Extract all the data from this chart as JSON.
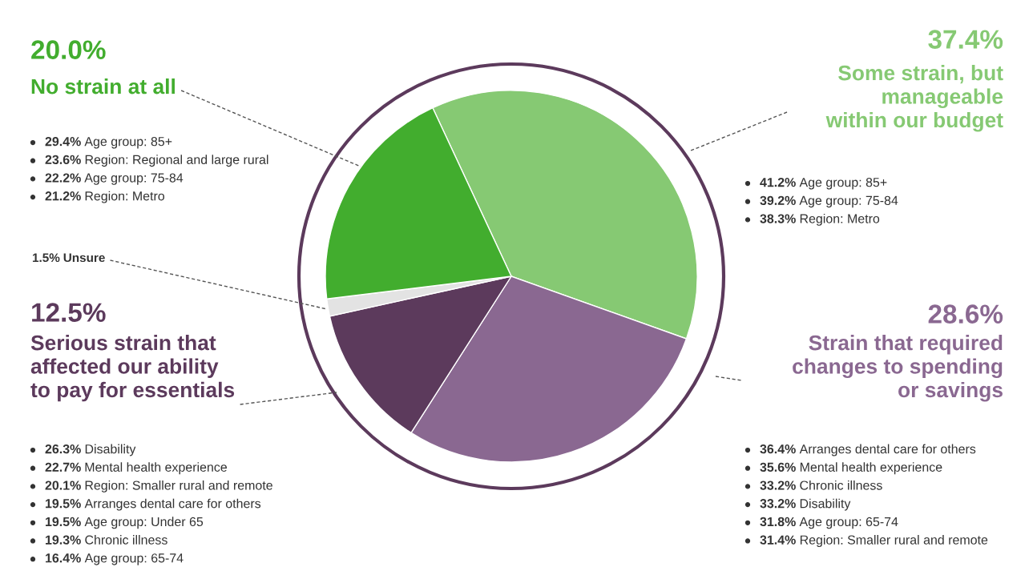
{
  "chart_data": {
    "type": "pie",
    "categories": [
      "Some strain, but\nmanageable\nwithin our budget",
      "Strain that required\nchanges to spending\nor savings",
      "Serious strain that\naffected our ability\nto pay for essentials",
      "Unsure",
      "No strain at all"
    ],
    "values": [
      37.4,
      28.6,
      12.5,
      1.5,
      20.0
    ],
    "colors": [
      "#86c973",
      "#8a6891",
      "#5c3a5c",
      "#e3e3e3",
      "#42ad2e"
    ],
    "value_labels": [
      "37.4%",
      "28.6%",
      "12.5%",
      "1.5%",
      "20.0%"
    ],
    "legend": false,
    "annotations": [
      "41.2% Age group: 85+",
      "39.2% Age group: 75-84",
      "38.3% Region: Metro",
      "36.4% Arranges dental care for others",
      "35.6% Mental health experience",
      "33.2% Chronic illness",
      "33.2% Disability",
      "31.8% Age group: 65-74",
      "31.4% Region: Smaller rural and remote",
      "26.3% Disability",
      "22.7% Mental health experience",
      "20.1% Region: Smaller rural and remote",
      "19.5% Arranges dental care for others",
      "19.5% Age group: Under 65",
      "19.3% Chronic illness",
      "16.4% Age group: 65-74",
      "29.4% Age group: 85+",
      "23.6% Region: Regional and large rural",
      "22.2% Age group: 75-84",
      "21.2% Region: Metro"
    ]
  }
}
